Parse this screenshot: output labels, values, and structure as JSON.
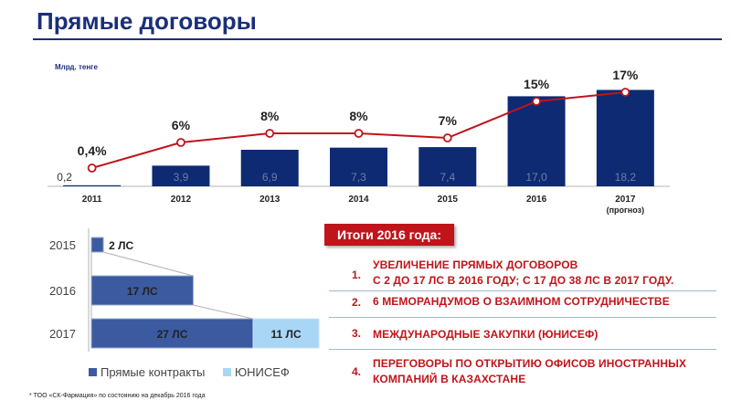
{
  "page": {
    "title": "Прямые договоры"
  },
  "chart_data": [
    {
      "type": "bar+line",
      "unit_label": "Млрд. тенге",
      "categories": [
        "2011",
        "2012",
        "2013",
        "2014",
        "2015",
        "2016",
        "2017"
      ],
      "category_sublabels": [
        "",
        "",
        "",
        "",
        "",
        "",
        "(прогноз)"
      ],
      "bar_values": [
        0.2,
        3.9,
        6.9,
        7.3,
        7.4,
        17.0,
        18.2
      ],
      "bar_labels": [
        "0,2",
        "3,9",
        "6,9",
        "7,3",
        "7,4",
        "17,0",
        "18,2"
      ],
      "line_values": [
        0.4,
        6,
        8,
        8,
        7,
        15,
        17
      ],
      "line_labels": [
        "0,4%",
        "6%",
        "8%",
        "8%",
        "7%",
        "15%",
        "17%"
      ],
      "bar_color": "#0d2a73",
      "line_color": "#c0141b",
      "ylim": [
        0,
        20
      ],
      "line_ylim": [
        0,
        20
      ]
    },
    {
      "type": "bar",
      "orientation": "horizontal-stacked",
      "categories": [
        "2015",
        "2016",
        "2017"
      ],
      "series": [
        {
          "name": "Прямые контракты",
          "values": [
            2,
            17,
            27
          ],
          "labels": [
            "2 ЛС",
            "17 ЛС",
            "27 ЛС"
          ],
          "color": "#3c5aa0"
        },
        {
          "name": "ЮНИСЕФ",
          "values": [
            0,
            0,
            11
          ],
          "labels": [
            "",
            "",
            "11 ЛС"
          ],
          "color": "#a9d6f5"
        }
      ],
      "xlim": [
        0,
        38
      ]
    }
  ],
  "summary": {
    "header": "Итоги 2016 года:",
    "items": [
      {
        "num": "1.",
        "lines": [
          "УВЕЛИЧЕНИЕ ПРЯМЫХ ДОГОВОРОВ",
          "С 2 ДО 17  ЛС В 2016 ГОДУ; С 17 ДО 38 ЛС В 2017 ГОДУ."
        ]
      },
      {
        "num": "2.",
        "lines": [
          "6 МЕМОРАНДУМОВ  О ВЗАИМНОМ СОТРУДНИЧЕСТВЕ"
        ]
      },
      {
        "num": "3.",
        "lines": [
          "МЕЖДУНАРОДНЫЕ ЗАКУПКИ (ЮНИСЕФ)"
        ]
      },
      {
        "num": "4.",
        "lines": [
          "ПЕРЕГОВОРЫ ПО ОТКРЫТИЮ ОФИСОВ ИНОСТРАННЫХ",
          "КОМПАНИЙ В КАЗАХСТАНЕ"
        ]
      }
    ]
  },
  "footnote": "* ТОО «СК-Фармация»  по состоянию на  декабрь 2016 года"
}
